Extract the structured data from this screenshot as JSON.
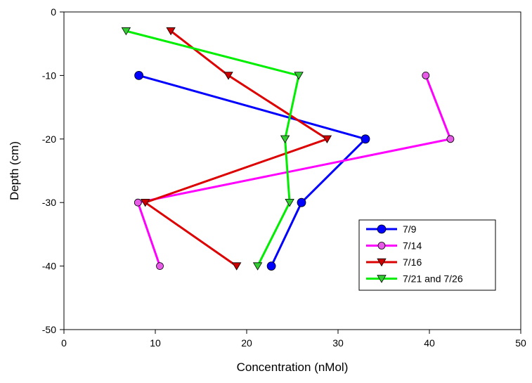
{
  "chart_data": {
    "type": "line",
    "title": "",
    "xlabel": "Concentration (nMol)",
    "ylabel": "Depth (cm)",
    "xlim": [
      0,
      50
    ],
    "ylim": [
      -50,
      0
    ],
    "xticks": [
      0,
      10,
      20,
      30,
      40,
      50
    ],
    "yticks": [
      0,
      -10,
      -20,
      -30,
      -40,
      -50
    ],
    "grid": false,
    "legend_position": "bottom-right",
    "series": [
      {
        "name": "7/9",
        "color": "#0000ff",
        "marker": "circle",
        "marker_fill": "#0000ff",
        "points": [
          [
            8.2,
            -10
          ],
          [
            33,
            -20
          ],
          [
            26,
            -30
          ],
          [
            22.7,
            -40
          ]
        ]
      },
      {
        "name": "7/14",
        "color": "#ff00ff",
        "marker": "circle-small",
        "marker_fill": "#e65ce6",
        "points": [
          [
            39.6,
            -10
          ],
          [
            42.3,
            -20
          ],
          [
            8.1,
            -30
          ],
          [
            10.5,
            -40
          ]
        ]
      },
      {
        "name": "7/16",
        "color": "#dd0000",
        "marker": "triangle-down",
        "marker_fill": "#cc0000",
        "points": [
          [
            11.7,
            -3
          ],
          [
            18,
            -10
          ],
          [
            28.8,
            -20
          ],
          [
            8.9,
            -30
          ],
          [
            18.9,
            -40
          ]
        ]
      },
      {
        "name": "7/21 and 7/26",
        "color": "#00ee00",
        "marker": "triangle-down",
        "marker_fill": "#33cc33",
        "points": [
          [
            6.8,
            -3
          ],
          [
            25.7,
            -10
          ],
          [
            24.2,
            -20
          ],
          [
            24.7,
            -30
          ],
          [
            21.2,
            -40
          ]
        ]
      }
    ]
  }
}
